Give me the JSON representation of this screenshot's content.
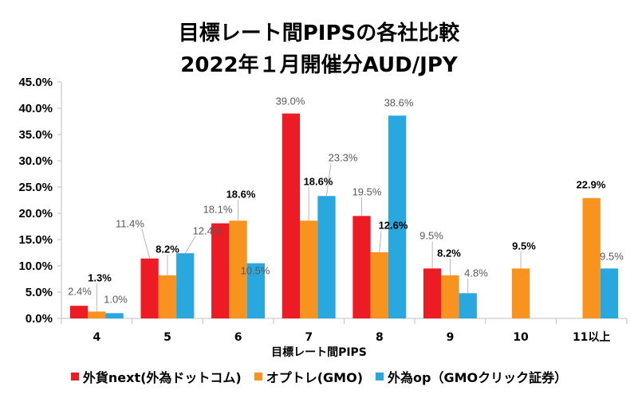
{
  "chart_data": {
    "type": "bar",
    "title": "目標レート間PIPSの各社比較",
    "subtitle": "2022年１月開催分AUD/JPY",
    "xlabel": "目標レート間PIPS",
    "ylabel": "",
    "categories": [
      "4",
      "5",
      "6",
      "7",
      "8",
      "9",
      "10",
      "11以上"
    ],
    "ylim": [
      0,
      45
    ],
    "yticks": [
      0,
      5,
      10,
      15,
      20,
      25,
      30,
      35,
      40,
      45
    ],
    "ytick_labels": [
      "0.0%",
      "5.0%",
      "10.0%",
      "15.0%",
      "20.0%",
      "25.0%",
      "30.0%",
      "35.0%",
      "40.0%",
      "45.0%"
    ],
    "grid": false,
    "legend_position": "bottom",
    "series": [
      {
        "name": "外貨next(外為ドットコム)",
        "color": "#ED1C24",
        "label_color": "#595959",
        "values": [
          2.4,
          11.4,
          18.1,
          39.0,
          19.5,
          9.5,
          null,
          null
        ],
        "labels": [
          "2.4%",
          "11.4%",
          "18.1%",
          "39.0%",
          "19.5%",
          "9.5%",
          null,
          null
        ]
      },
      {
        "name": "オプトレ(GMO)",
        "color": "#F7931E",
        "label_color": "#000000",
        "values": [
          1.3,
          8.2,
          18.6,
          18.6,
          12.6,
          8.2,
          9.5,
          22.9
        ],
        "labels": [
          "1.3%",
          "8.2%",
          "18.6%",
          "18.6%",
          "12.6%",
          "8.2%",
          "9.5%",
          "22.9%"
        ]
      },
      {
        "name": "外為op（GMOクリック証券）",
        "color": "#29A8E0",
        "label_color": "#595959",
        "values": [
          1.0,
          12.4,
          10.5,
          23.3,
          38.6,
          4.8,
          null,
          9.5
        ],
        "labels": [
          "1.0%",
          "12.4%",
          "10.5%",
          "23.3%",
          "38.6%",
          "4.8%",
          null,
          "9.5%"
        ]
      }
    ]
  }
}
